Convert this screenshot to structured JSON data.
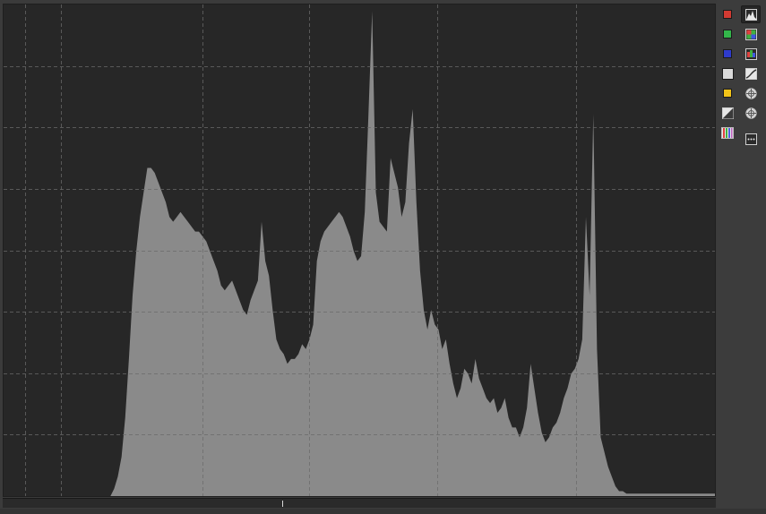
{
  "histogram": {
    "background_color": "#272727",
    "fill_color": "#8a8a8a",
    "grid_color": "#6a6a6a",
    "vertical_grid_fractions": [
      0.03,
      0.08,
      0.28,
      0.43,
      0.61,
      0.805
    ],
    "horizontal_grid_fractions": [
      0.125,
      0.25,
      0.375,
      0.5,
      0.625,
      0.75,
      0.875
    ],
    "profile": [
      0,
      0,
      0,
      0,
      0,
      0,
      0,
      0,
      0,
      0,
      0,
      0,
      0,
      0,
      0,
      0,
      0,
      0,
      0,
      0,
      0,
      0,
      0,
      0,
      0,
      0,
      0,
      0,
      0,
      0,
      0.015,
      0.04,
      0.08,
      0.16,
      0.28,
      0.41,
      0.5,
      0.57,
      0.62,
      0.67,
      0.67,
      0.66,
      0.64,
      0.62,
      0.6,
      0.57,
      0.56,
      0.57,
      0.58,
      0.57,
      0.56,
      0.55,
      0.54,
      0.54,
      0.53,
      0.52,
      0.5,
      0.48,
      0.46,
      0.43,
      0.42,
      0.43,
      0.44,
      0.42,
      0.4,
      0.38,
      0.37,
      0.4,
      0.42,
      0.44,
      0.56,
      0.48,
      0.45,
      0.38,
      0.32,
      0.3,
      0.29,
      0.27,
      0.28,
      0.28,
      0.29,
      0.31,
      0.3,
      0.32,
      0.35,
      0.48,
      0.52,
      0.54,
      0.55,
      0.56,
      0.57,
      0.58,
      0.57,
      0.55,
      0.53,
      0.5,
      0.48,
      0.49,
      0.58,
      0.78,
      0.99,
      0.62,
      0.56,
      0.55,
      0.54,
      0.69,
      0.66,
      0.63,
      0.57,
      0.6,
      0.72,
      0.79,
      0.6,
      0.46,
      0.38,
      0.34,
      0.38,
      0.35,
      0.34,
      0.3,
      0.32,
      0.27,
      0.23,
      0.2,
      0.22,
      0.26,
      0.25,
      0.23,
      0.28,
      0.24,
      0.22,
      0.2,
      0.19,
      0.2,
      0.17,
      0.18,
      0.2,
      0.16,
      0.14,
      0.14,
      0.12,
      0.14,
      0.18,
      0.27,
      0.22,
      0.17,
      0.13,
      0.11,
      0.12,
      0.14,
      0.15,
      0.17,
      0.2,
      0.22,
      0.25,
      0.26,
      0.28,
      0.32,
      0.57,
      0.41,
      0.78,
      0.3,
      0.12,
      0.09,
      0.06,
      0.04,
      0.02,
      0.01,
      0.01,
      0.005,
      0.005,
      0.005,
      0.005,
      0.005,
      0.005,
      0.005,
      0.005,
      0.005,
      0.005,
      0.005,
      0.005,
      0.005,
      0.005,
      0.005,
      0.005,
      0.005,
      0.005,
      0.005,
      0.005,
      0.005,
      0.005,
      0.005,
      0.005,
      0.005
    ]
  },
  "scrub": {
    "marker_fraction": 0.392
  },
  "toolbar": {
    "left_column": [
      {
        "name": "red-channel-toggle",
        "swatch": "#d23a32"
      },
      {
        "name": "green-channel-toggle",
        "swatch": "#33b54a"
      },
      {
        "name": "blue-channel-toggle",
        "swatch": "#2e3bcc"
      },
      {
        "name": "luminance-toggle",
        "swatch": "#d9d9d9"
      },
      {
        "name": "chroma-toggle",
        "swatch": "#f2c318"
      },
      {
        "name": "raw-toggle",
        "icon": "gradient-icon"
      },
      {
        "name": "bar-mode-toggle",
        "icon": "rgb-bars-icon"
      }
    ],
    "right_column": [
      {
        "name": "histogram-mode-button",
        "icon": "histogram-icon",
        "active": true
      },
      {
        "name": "rgb-parade-button",
        "icon": "rgb-grid-icon"
      },
      {
        "name": "waveform-button",
        "icon": "waveform-icon"
      },
      {
        "name": "curve-button",
        "icon": "curve-icon"
      },
      {
        "name": "vectorscope-hs-button",
        "icon": "vectorscope-hs-icon"
      },
      {
        "name": "vectorscope-hc-button",
        "icon": "vectorscope-hc-icon"
      },
      {
        "name": "more-options-button",
        "icon": "more-icon"
      }
    ]
  }
}
